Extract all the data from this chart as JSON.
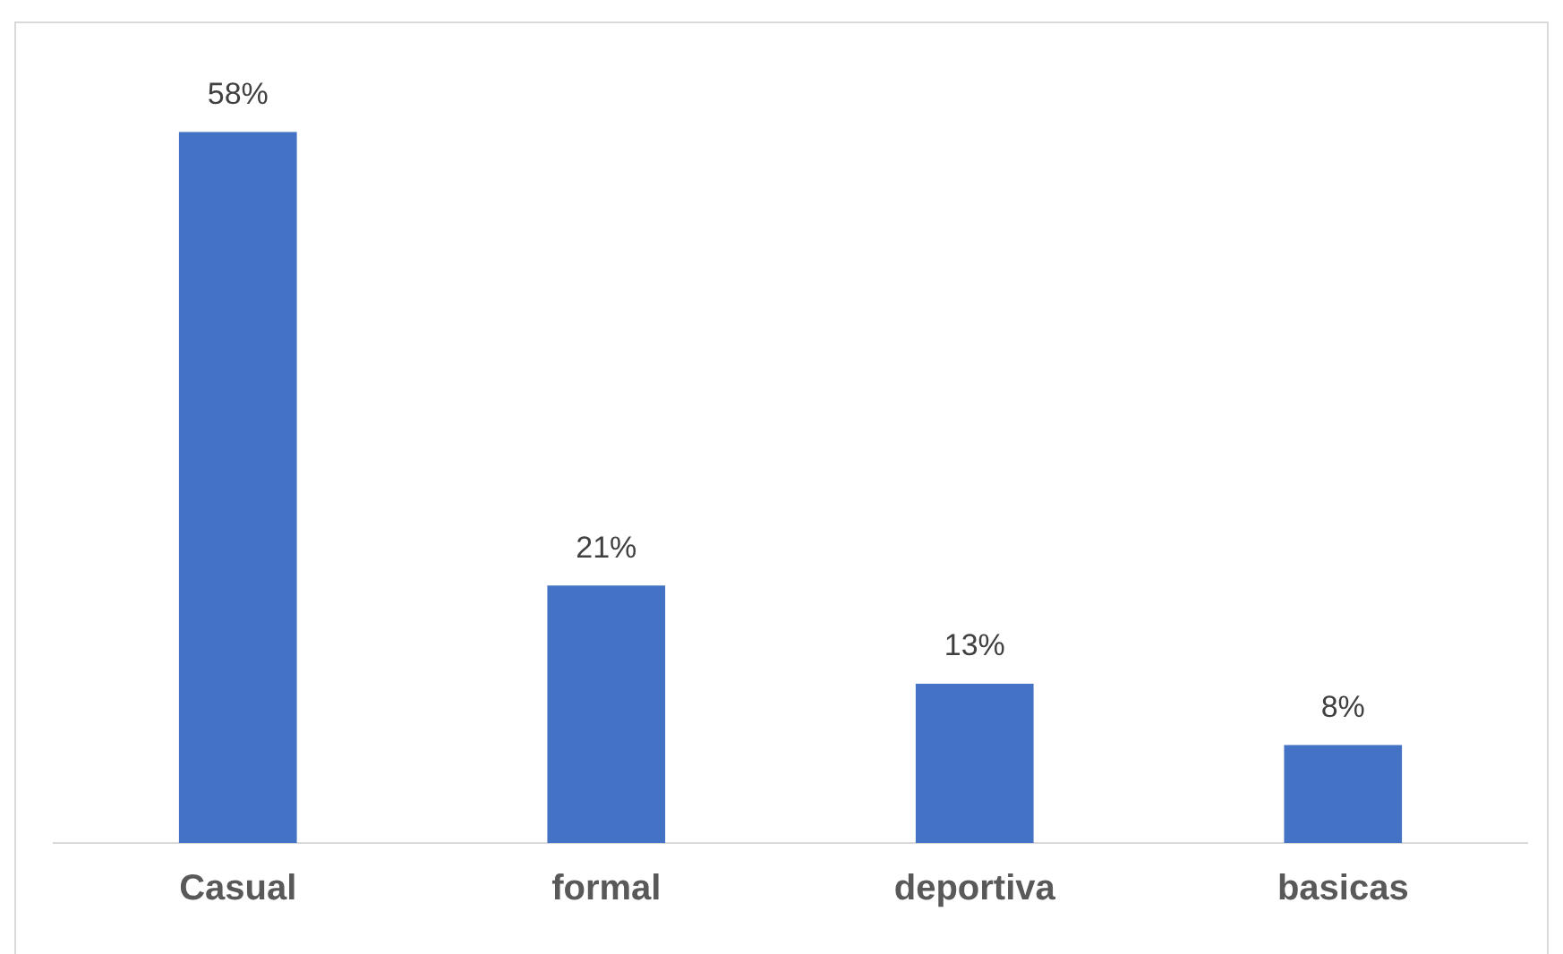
{
  "chart_data": {
    "type": "bar",
    "categories": [
      "Casual",
      "formal",
      "deportiva",
      "basicas"
    ],
    "values": [
      58,
      21,
      13,
      8
    ],
    "color": "#4472c4",
    "value_labels": [
      "58%",
      "21%",
      "13%",
      "8%"
    ],
    "grid": false,
    "legend": false
  }
}
